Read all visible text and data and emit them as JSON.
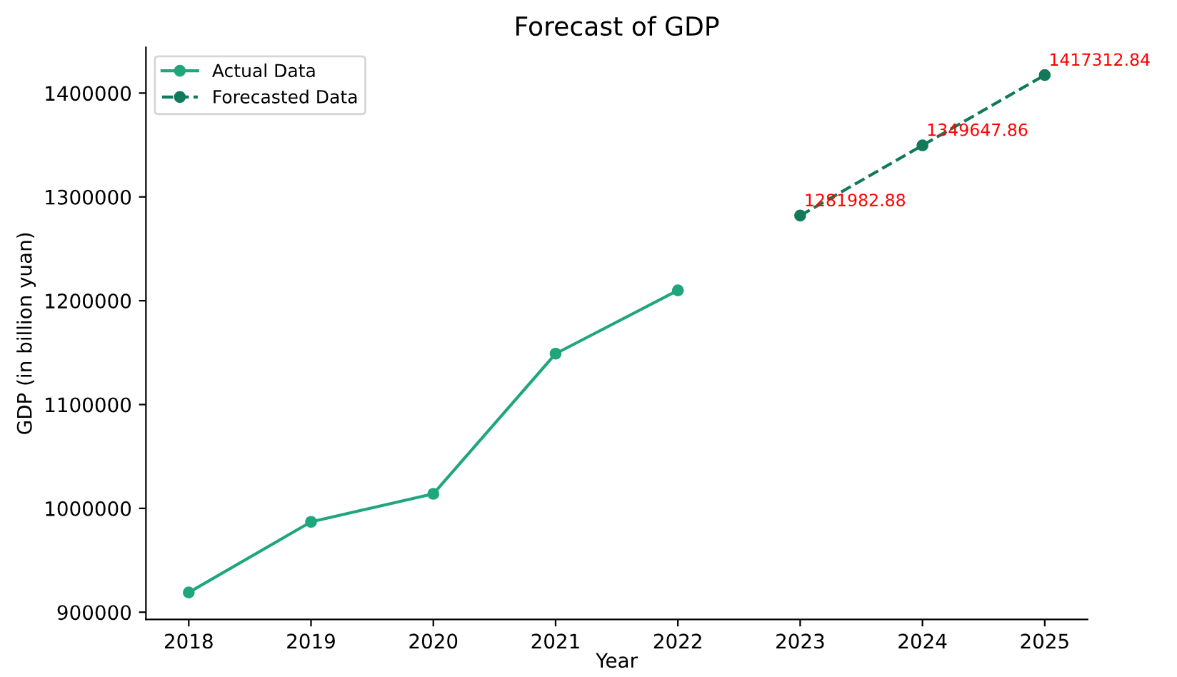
{
  "chart_data": {
    "type": "line",
    "title": "Forecast of GDP",
    "xlabel": "Year",
    "ylabel": "GDP (in billion yuan)",
    "xlim": [
      2017.65,
      2025.35
    ],
    "xticks": [
      2018,
      2019,
      2020,
      2021,
      2022,
      2023,
      2024,
      2025
    ],
    "ylim": [
      893000,
      1444000
    ],
    "yticks": [
      900000,
      1000000,
      1100000,
      1200000,
      1300000,
      1400000
    ],
    "series": [
      {
        "name": "Actual Data",
        "color": "#1fa67d",
        "line_style": "solid",
        "x": [
          2018,
          2019,
          2020,
          2021,
          2022
        ],
        "values": [
          919000,
          987000,
          1014000,
          1149000,
          1210000
        ]
      },
      {
        "name": "Forecasted Data",
        "color": "#117a5a",
        "line_style": "dashed",
        "x": [
          2023,
          2024,
          2025
        ],
        "values": [
          1281982.88,
          1349647.86,
          1417312.84
        ],
        "value_labels": [
          "1281982.88",
          "1349647.86",
          "1417312.84"
        ]
      }
    ],
    "marker": "circle",
    "legend": "top left",
    "grid": false
  }
}
